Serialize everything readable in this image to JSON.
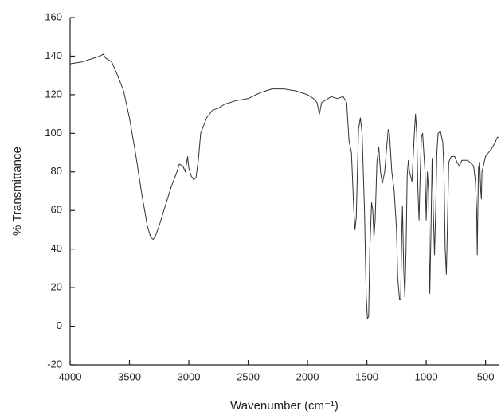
{
  "chart_data": {
    "type": "line",
    "x_label": "Wavenumber (cm⁻¹)",
    "y_label": "% Transmittance",
    "xlim": [
      4000,
      390
    ],
    "ylim": [
      -20,
      160
    ],
    "xticks": [
      4000,
      3500,
      3000,
      2500,
      2000,
      1500,
      1000,
      500
    ],
    "yticks": [
      -20,
      0,
      20,
      40,
      60,
      80,
      100,
      120,
      140,
      160
    ],
    "color": "#333333",
    "x": [
      4000,
      3900,
      3800,
      3750,
      3720,
      3700,
      3650,
      3600,
      3550,
      3500,
      3450,
      3400,
      3350,
      3320,
      3300,
      3280,
      3250,
      3200,
      3150,
      3100,
      3080,
      3050,
      3030,
      3010,
      3000,
      2980,
      2960,
      2940,
      2920,
      2900,
      2850,
      2800,
      2750,
      2700,
      2600,
      2500,
      2400,
      2300,
      2200,
      2100,
      2000,
      1950,
      1920,
      1900,
      1880,
      1800,
      1750,
      1700,
      1670,
      1650,
      1630,
      1610,
      1600,
      1590,
      1570,
      1555,
      1540,
      1520,
      1505,
      1495,
      1485,
      1475,
      1460,
      1450,
      1440,
      1430,
      1415,
      1400,
      1385,
      1370,
      1350,
      1330,
      1320,
      1310,
      1290,
      1270,
      1250,
      1240,
      1225,
      1215,
      1205,
      1200,
      1190,
      1180,
      1170,
      1160,
      1150,
      1140,
      1120,
      1100,
      1090,
      1080,
      1070,
      1060,
      1050,
      1040,
      1030,
      1020,
      1010,
      1000,
      990,
      980,
      970,
      960,
      950,
      940,
      930,
      920,
      910,
      900,
      880,
      860,
      850,
      840,
      830,
      820,
      810,
      790,
      760,
      740,
      720,
      700,
      650,
      600,
      585,
      575,
      570,
      565,
      560,
      550,
      540,
      535,
      530,
      500,
      450,
      420,
      400,
      390
    ],
    "values": [
      136,
      137,
      139,
      140,
      141,
      139,
      137,
      130,
      122,
      108,
      90,
      70,
      52,
      46,
      45,
      47,
      52,
      62,
      72,
      80,
      84,
      83,
      80,
      88,
      82,
      78,
      76,
      77,
      86,
      100,
      108,
      112,
      113,
      115,
      117,
      118,
      121,
      123,
      123,
      122,
      120,
      118,
      116,
      110,
      116,
      119,
      118,
      119,
      116,
      96,
      90,
      60,
      50,
      56,
      102,
      108,
      100,
      60,
      15,
      4,
      5,
      40,
      64,
      60,
      46,
      55,
      85,
      93,
      80,
      74,
      80,
      95,
      102,
      100,
      80,
      70,
      50,
      25,
      14,
      14,
      50,
      62,
      30,
      15,
      40,
      78,
      86,
      80,
      75,
      100,
      110,
      100,
      70,
      55,
      80,
      98,
      100,
      90,
      80,
      55,
      80,
      70,
      17,
      50,
      87,
      60,
      37,
      60,
      90,
      100,
      101,
      95,
      80,
      40,
      27,
      55,
      85,
      88,
      88,
      85,
      83,
      86,
      86,
      83,
      75,
      60,
      37,
      60,
      82,
      85,
      70,
      66,
      80,
      88,
      92,
      95,
      98,
      98
    ]
  }
}
